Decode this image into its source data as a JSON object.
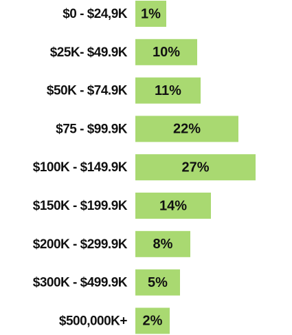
{
  "chart_data": {
    "type": "bar",
    "orientation": "horizontal",
    "categories": [
      "$0 - $24,9K",
      "$25K- $49.9K",
      "$50K - $74.9K",
      "$75 - $99.9K",
      "$100K - $149.9K",
      "$150K - $199.9K",
      "$200K - $299.9K",
      "$300K - $499.9K",
      "$500,000K+"
    ],
    "values": [
      1,
      10,
      11,
      22,
      27,
      14,
      8,
      5,
      2
    ],
    "value_labels": [
      "1%",
      "10%",
      "11%",
      "22%",
      "27%",
      "14%",
      "8%",
      "5%",
      "2%"
    ],
    "color": "#a9d971"
  }
}
